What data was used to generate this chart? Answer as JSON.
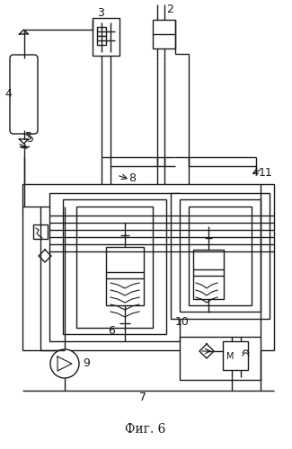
{
  "title": "Фиг. 6",
  "bg": "#ffffff",
  "lc": "#1a1a1a",
  "lw": 1.0,
  "figsize": [
    3.25,
    5.0
  ],
  "dpi": 100
}
